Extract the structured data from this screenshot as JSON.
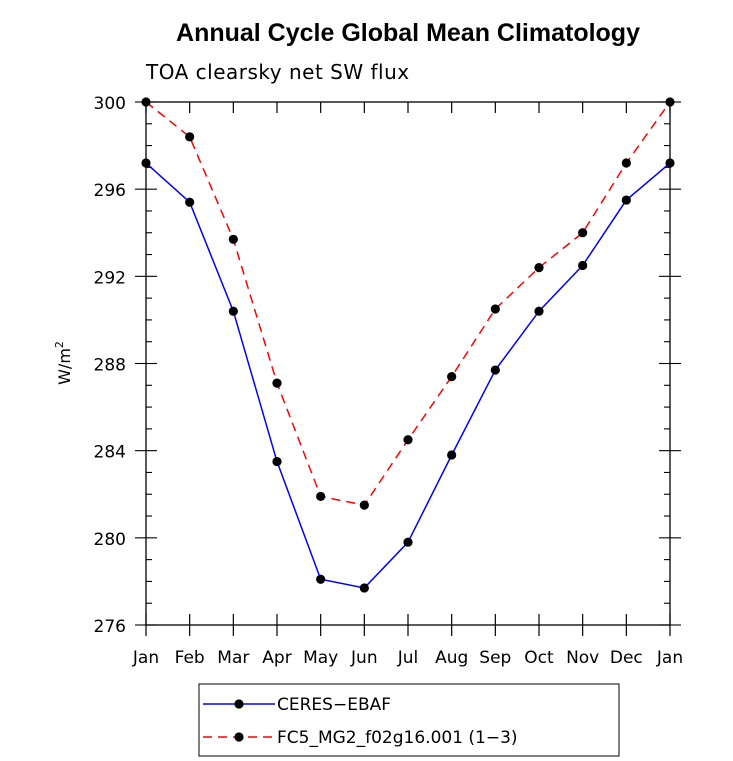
{
  "chart_data": {
    "type": "line",
    "title": "Annual Cycle Global Mean Climatology",
    "subtitle": "TOA clearsky net SW flux",
    "ylabel": "W/m",
    "ylabel_sup": "2",
    "xlabel": "",
    "categories": [
      "Jan",
      "Feb",
      "Mar",
      "Apr",
      "May",
      "Jun",
      "Jul",
      "Aug",
      "Sep",
      "Oct",
      "Nov",
      "Dec",
      "Jan"
    ],
    "ylim": [
      276,
      300
    ],
    "yticks": [
      "276",
      "280",
      "284",
      "288",
      "292",
      "296",
      "300"
    ],
    "grid": false,
    "legend_placement": "bottom",
    "series": [
      {
        "name": "CERES−EBAF",
        "color": "#0000ff",
        "dash": "solid",
        "marker": "filled-circle",
        "values": [
          297.2,
          295.4,
          290.4,
          283.5,
          278.1,
          277.7,
          279.8,
          283.8,
          287.7,
          290.4,
          292.5,
          295.5,
          297.2
        ]
      },
      {
        "name": "FC5_MG2_f02g16.001 (1−3)",
        "color": "#ff0000",
        "dash": "dashed",
        "marker": "filled-circle",
        "values": [
          300.0,
          298.4,
          293.7,
          287.1,
          281.9,
          281.5,
          284.5,
          287.4,
          290.5,
          292.4,
          294.0,
          297.2,
          300.0
        ]
      }
    ]
  }
}
